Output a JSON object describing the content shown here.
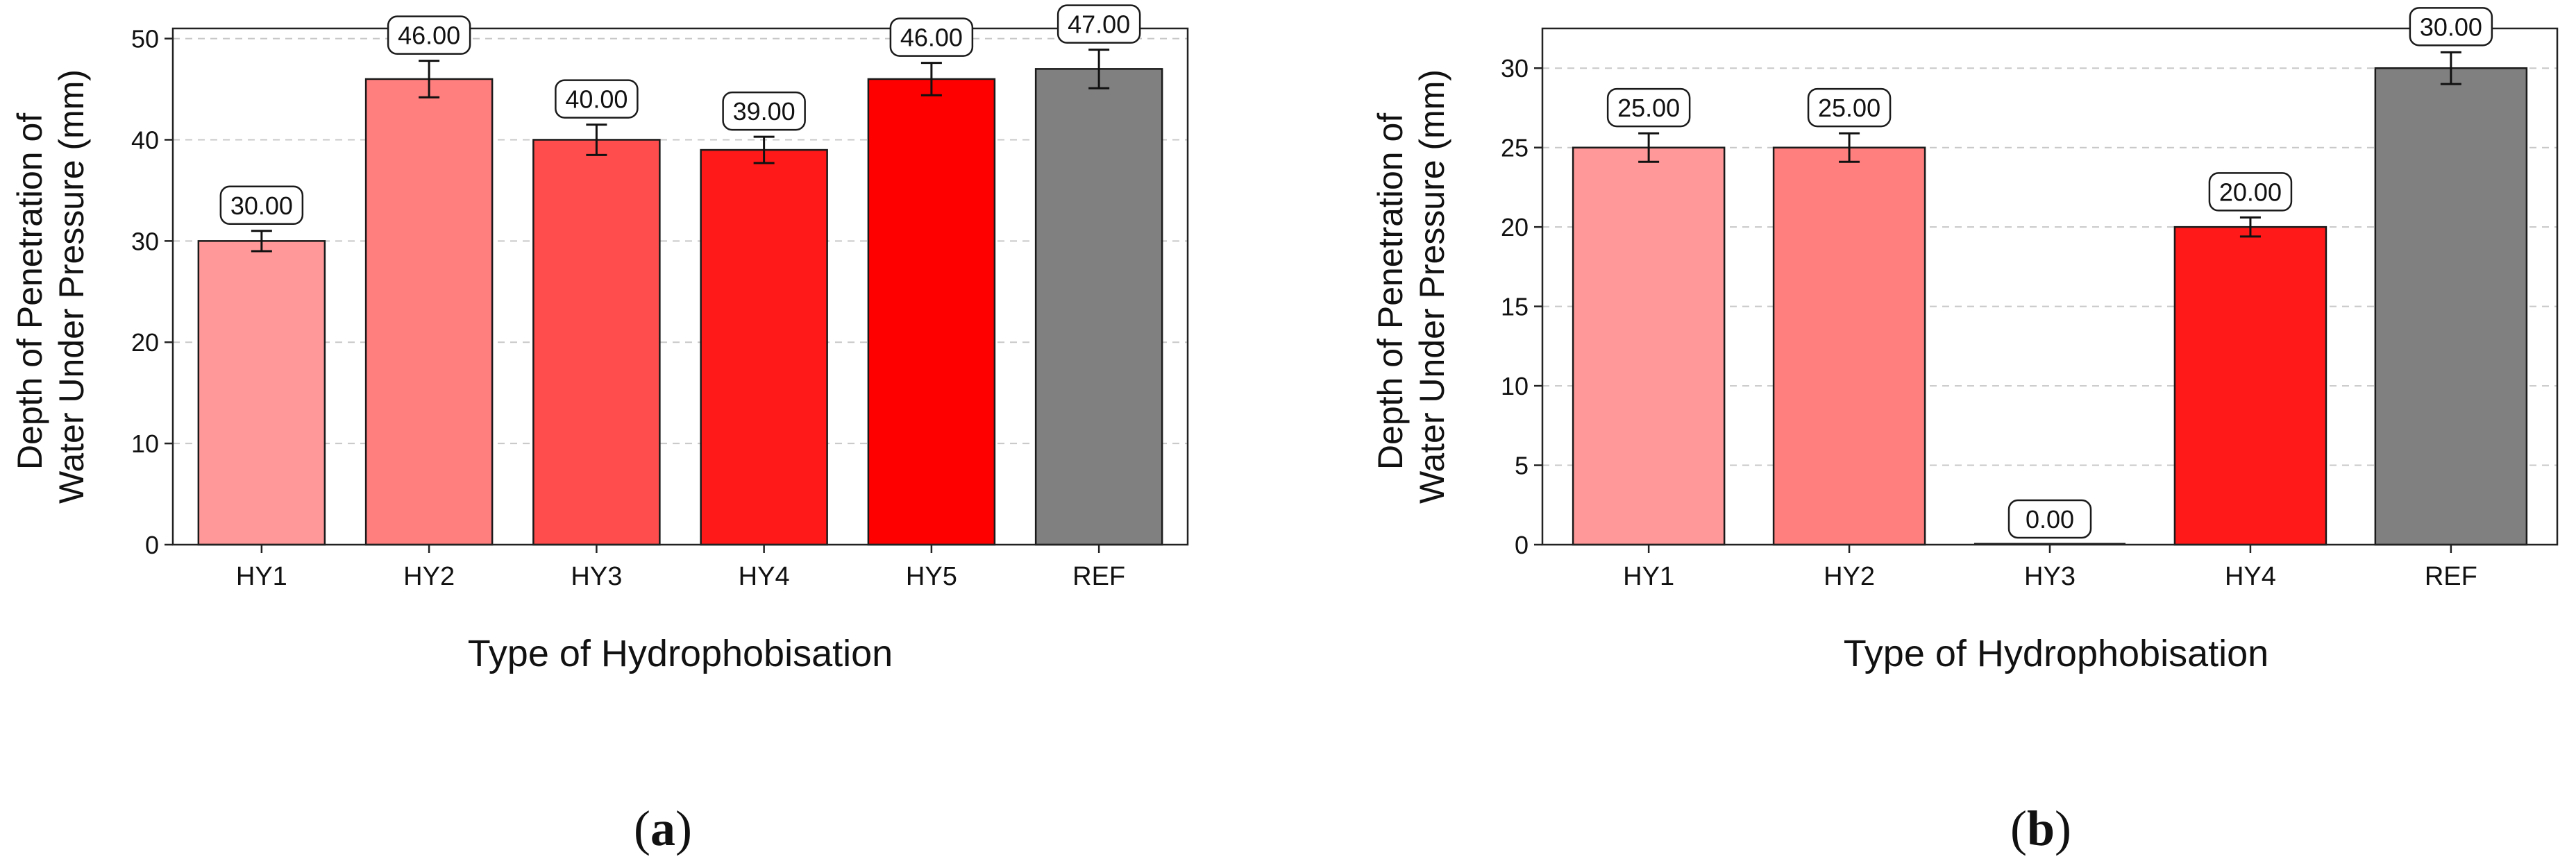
{
  "chart_data": [
    {
      "id": "a",
      "type": "bar",
      "panel_label": "(a)",
      "panel_label_parts": {
        "open": "(",
        "letter": "a",
        "close": ")"
      },
      "categories": [
        "HY1",
        "HY2",
        "HY3",
        "HY4",
        "HY5",
        "REF"
      ],
      "values": [
        30.0,
        46.0,
        40.0,
        39.0,
        46.0,
        47.0
      ],
      "errors": [
        1.0,
        1.8,
        1.5,
        1.3,
        1.6,
        1.9
      ],
      "value_labels": [
        "30.00",
        "46.00",
        "40.00",
        "39.00",
        "46.00",
        "47.00"
      ],
      "colors": [
        "#ff9999",
        "#ff7f7f",
        "#ff4c4c",
        "#ff1919",
        "#ff0000",
        "#808080"
      ],
      "xlabel": "Type of Hydrophobisation",
      "ylabel_lines": [
        "Depth of Penetration of",
        "Water Under Pressure (mm)"
      ],
      "ylim": [
        0,
        51
      ],
      "yticks": [
        0,
        10,
        20,
        30,
        40,
        50
      ],
      "grid": "y-dashed"
    },
    {
      "id": "b",
      "type": "bar",
      "panel_label": "(b)",
      "panel_label_parts": {
        "open": "(",
        "letter": "b",
        "close": ")"
      },
      "categories": [
        "HY1",
        "HY2",
        "HY3",
        "HY4",
        "REF"
      ],
      "values": [
        25.0,
        25.0,
        0.0,
        20.0,
        30.0
      ],
      "errors": [
        0.9,
        0.9,
        0.0,
        0.6,
        1.0
      ],
      "value_labels": [
        "25.00",
        "25.00",
        "0.00",
        "20.00",
        "30.00"
      ],
      "colors": [
        "#ff9999",
        "#ff7f7f",
        "#ff4c4c",
        "#ff1919",
        "#808080"
      ],
      "xlabel": "Type of Hydrophobisation",
      "ylabel_lines": [
        "Depth of Penetration of",
        "Water Under Pressure (mm)"
      ],
      "ylim": [
        0,
        32.5
      ],
      "yticks": [
        0,
        5,
        10,
        15,
        20,
        25,
        30
      ],
      "grid": "y-dashed"
    }
  ]
}
